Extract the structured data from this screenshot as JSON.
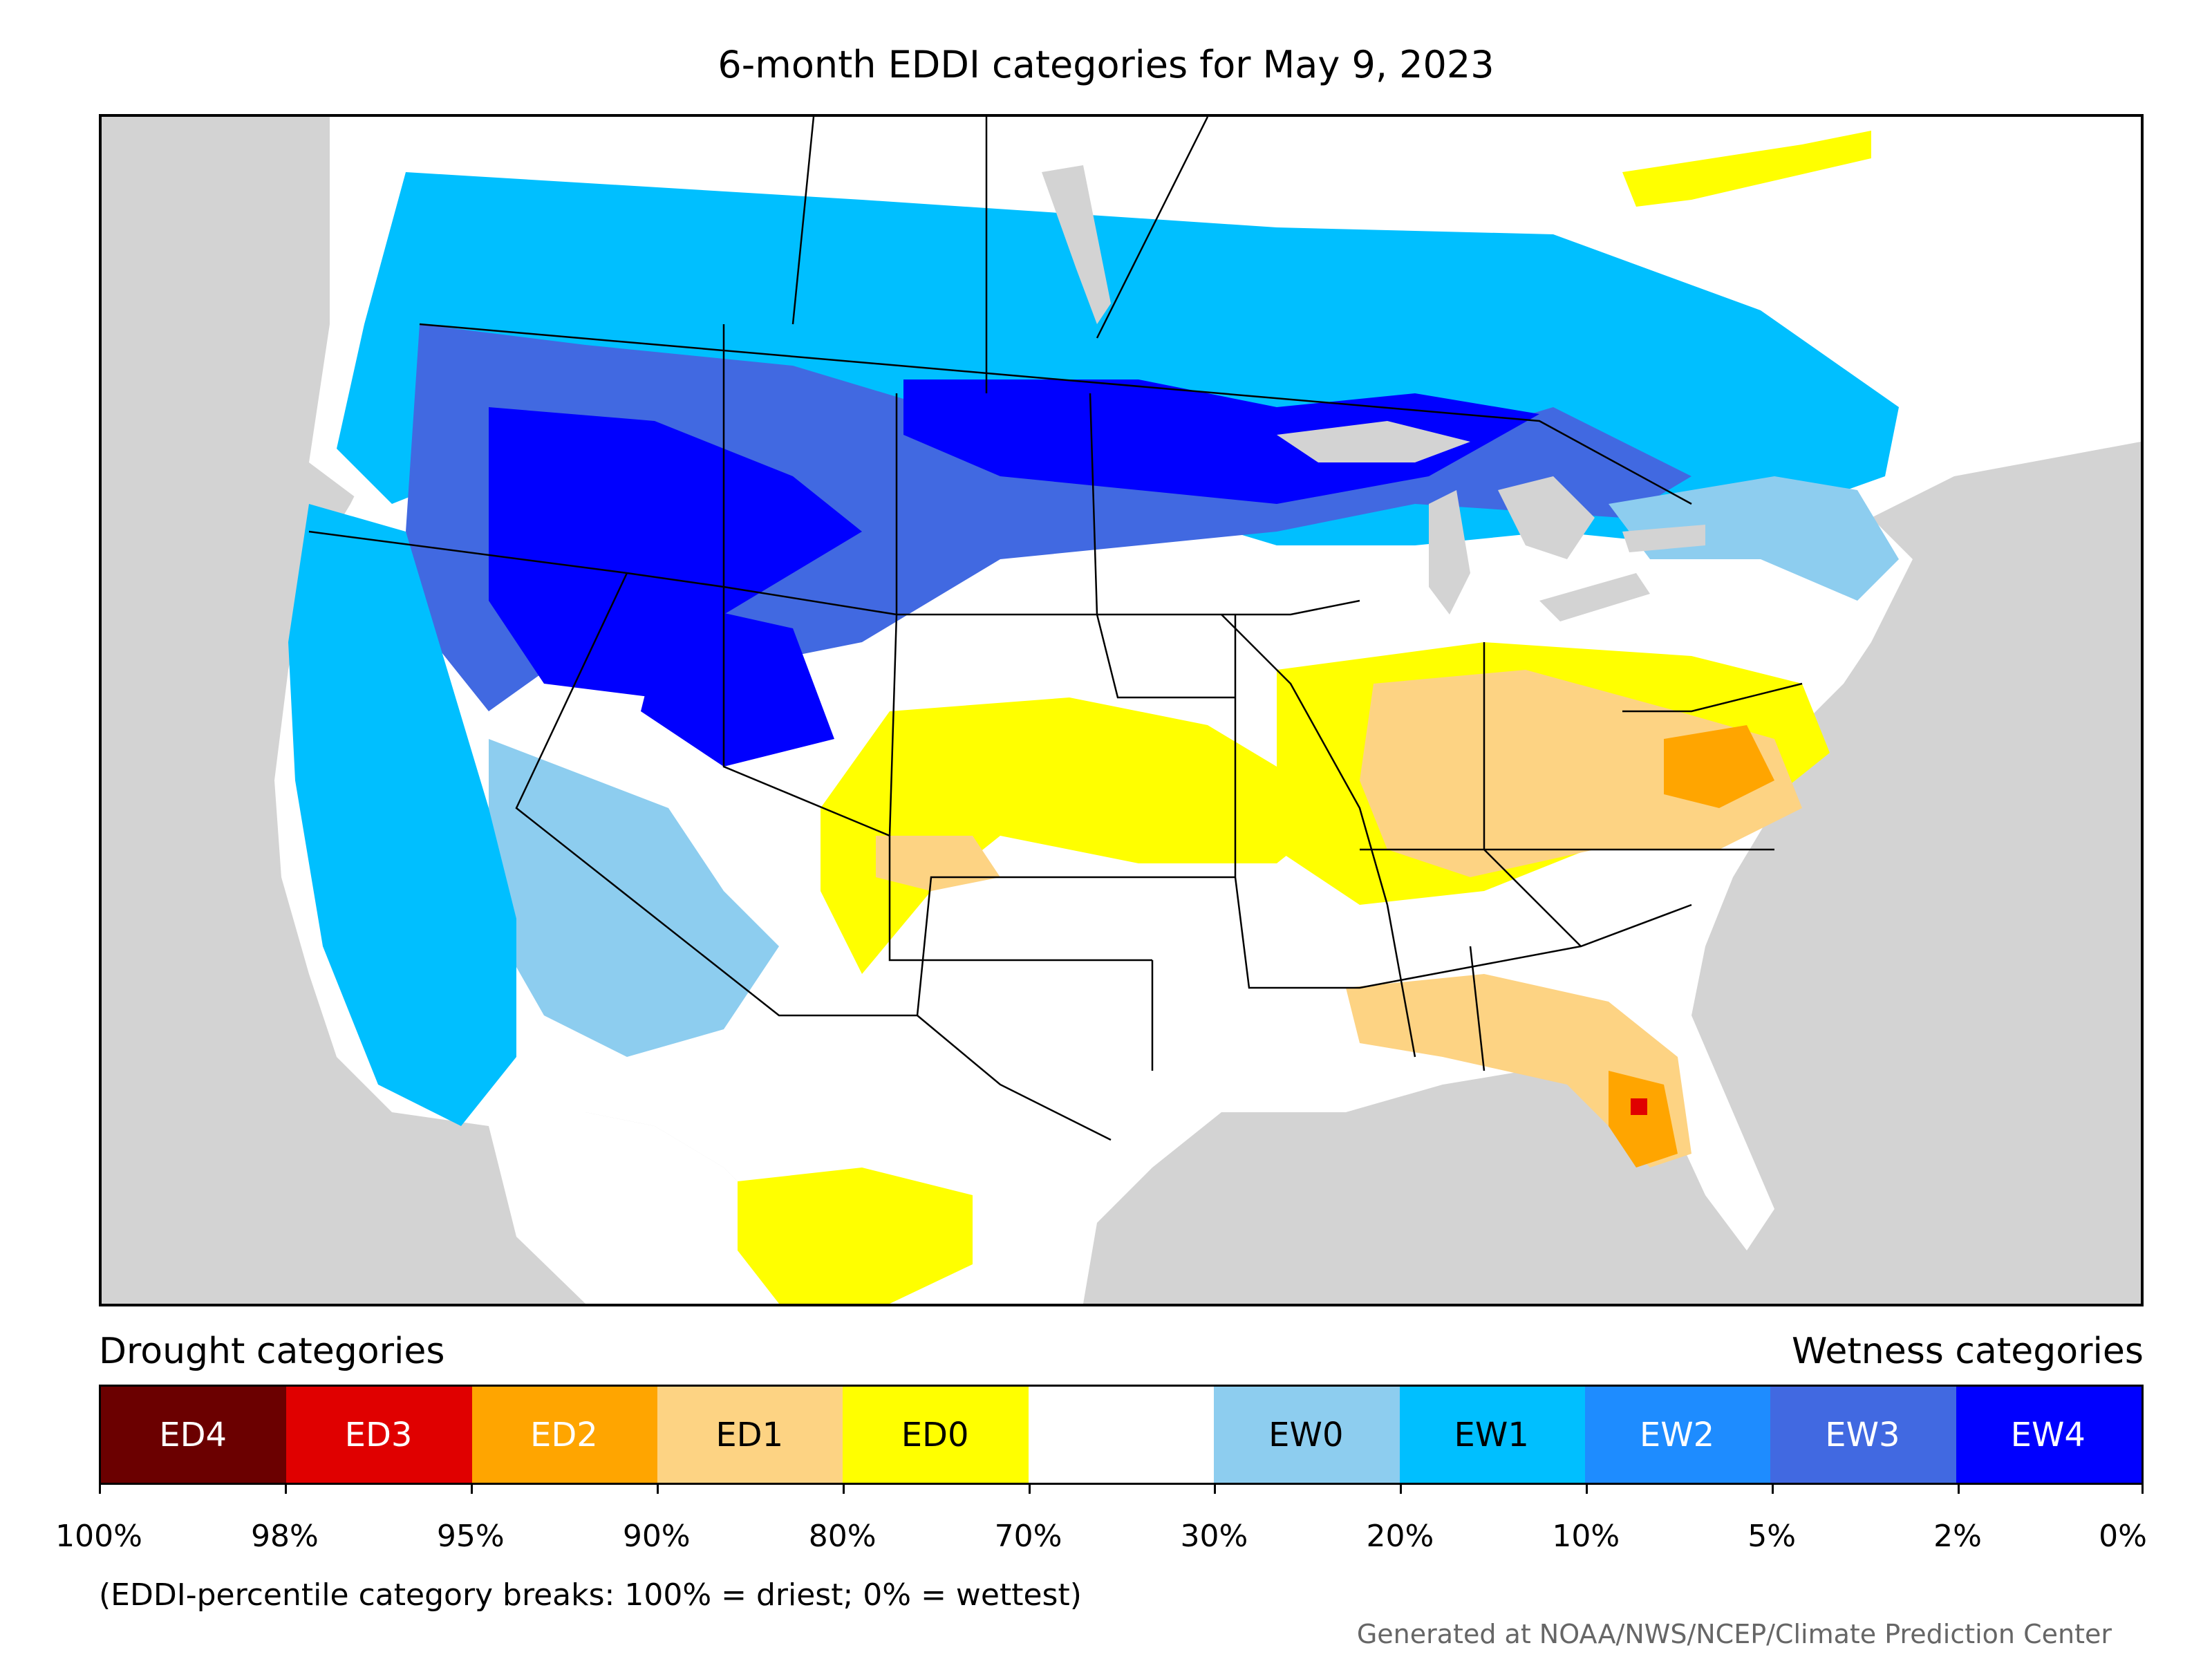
{
  "title": "6-month EDDI categories for May 9, 2023",
  "legend": {
    "drought_heading": "Drought categories",
    "wetness_heading": "Wetness categories",
    "categories": [
      {
        "label": "ED4",
        "color": "#6b0000",
        "text_color": "#ffffff"
      },
      {
        "label": "ED3",
        "color": "#e00000",
        "text_color": "#ffffff"
      },
      {
        "label": "ED2",
        "color": "#ffa500",
        "text_color": "#ffffff"
      },
      {
        "label": "ED1",
        "color": "#fdd383",
        "text_color": "#000000"
      },
      {
        "label": "ED0",
        "color": "#ffff00",
        "text_color": "#000000"
      },
      {
        "label": "",
        "color": "#ffffff",
        "text_color": "#000000"
      },
      {
        "label": "EW0",
        "color": "#8dcdef",
        "text_color": "#000000"
      },
      {
        "label": "EW1",
        "color": "#00bfff",
        "text_color": "#000000"
      },
      {
        "label": "EW2",
        "color": "#1e8cff",
        "text_color": "#ffffff"
      },
      {
        "label": "EW3",
        "color": "#4169e1",
        "text_color": "#ffffff"
      },
      {
        "label": "EW4",
        "color": "#0000ff",
        "text_color": "#ffffff"
      }
    ],
    "breaks": [
      "100%",
      "98%",
      "95%",
      "90%",
      "80%",
      "70%",
      "30%",
      "20%",
      "10%",
      "5%",
      "2%",
      "0%"
    ]
  },
  "note": "(EDDI-percentile category breaks: 100% = driest; 0% = wettest)",
  "credit": "Generated at NOAA/NWS/NCEP/Climate Prediction Center",
  "colors": {
    "ocean": "#d3d3d3",
    "land_neutral": "#ffffff",
    "border": "#000000"
  }
}
